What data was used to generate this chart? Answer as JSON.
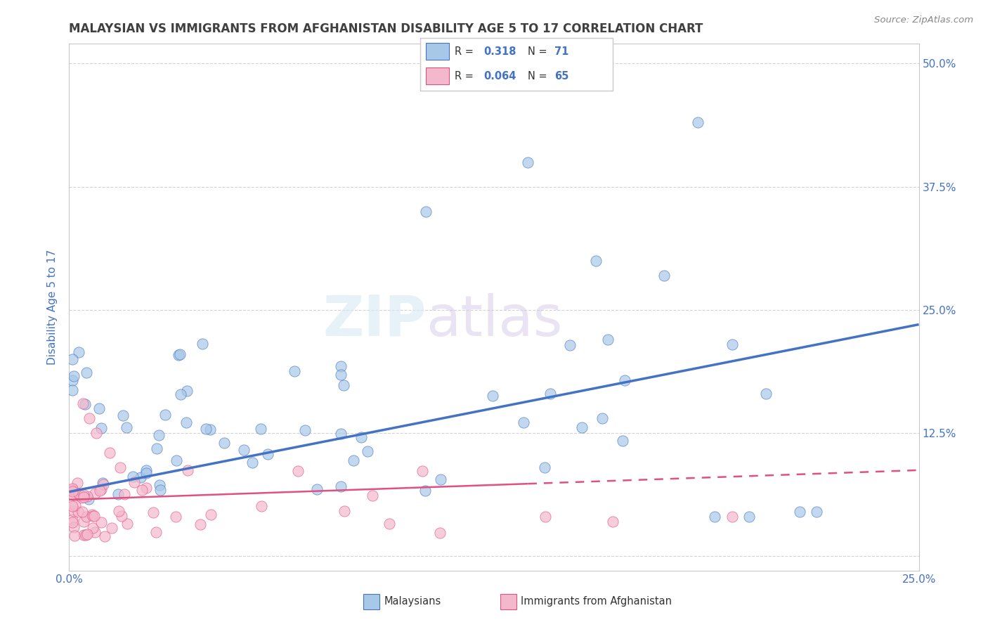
{
  "title": "MALAYSIAN VS IMMIGRANTS FROM AFGHANISTAN DISABILITY AGE 5 TO 17 CORRELATION CHART",
  "source": "Source: ZipAtlas.com",
  "ylabel": "Disability Age 5 to 17",
  "xlim": [
    0.0,
    0.25
  ],
  "ylim": [
    -0.015,
    0.52
  ],
  "r_malaysian": "0.318",
  "n_malaysian": "71",
  "r_afghan": "0.064",
  "n_afghan": "65",
  "legend_labels": [
    "Malaysians",
    "Immigrants from Afghanistan"
  ],
  "scatter_color_malaysian": "#a8c8e8",
  "scatter_color_afghan": "#f4b8cc",
  "line_color_malaysian": "#4472c4",
  "line_color_afghan": "#e05080",
  "watermark_zip": "ZIP",
  "watermark_atlas": "atlas",
  "background_color": "#ffffff",
  "grid_color": "#c8c8c8",
  "title_color": "#404040",
  "axis_label_color": "#4472c4",
  "tick_label_color": "#4472c4"
}
